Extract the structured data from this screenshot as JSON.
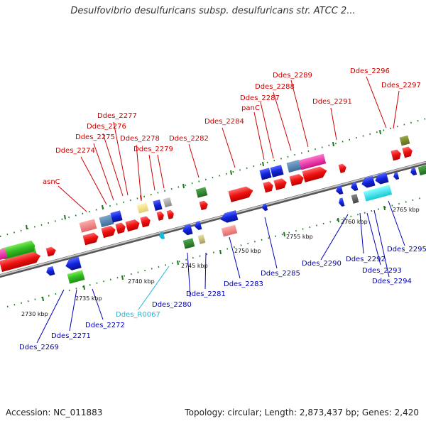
{
  "title": "Desulfovibrio desulfuricans subsp. desulfuricans str. ATCC 2...",
  "footer": {
    "accession": "Accession: NC_011883",
    "summary": "Topology: circular; Length: 2,873,437 bp; Genes: 2,420"
  },
  "kbp_ticks": [
    "2730 kbp",
    "2735 kbp",
    "2740 kbp",
    "2745 kbp",
    "2750 kbp",
    "2755 kbp",
    "2760 kbp",
    "2765 kbp"
  ],
  "upper_labels": [
    "asnC",
    "Ddes_2274",
    "Ddes_2275",
    "Ddes_2276",
    "Ddes_2277",
    "Ddes_2278",
    "Ddes_2279",
    "Ddes_2282",
    "Ddes_2284",
    "panC",
    "Ddes_2287",
    "Ddes_2288",
    "Ddes_2289",
    "Ddes_2291",
    "Ddes_2296",
    "Ddes_2297"
  ],
  "lower_labels": [
    "Ddes_2269",
    "Ddes_2271",
    "Ddes_2272",
    "Ddes_R0067",
    "Ddes_2280",
    "Ddes_2281",
    "Ddes_2283",
    "Ddes_2285",
    "Ddes_2290",
    "Ddes_2292",
    "Ddes_2293",
    "Ddes_2294",
    "Ddes_2295"
  ],
  "colors": {
    "forward_gene": "#ee1111",
    "reverse_gene": "#1122dd",
    "backbone": "#888888",
    "label_forward": "#cc0000",
    "label_reverse": "#0000bb",
    "label_rna": "#19b8e0",
    "dots": "#1a7a1a"
  }
}
